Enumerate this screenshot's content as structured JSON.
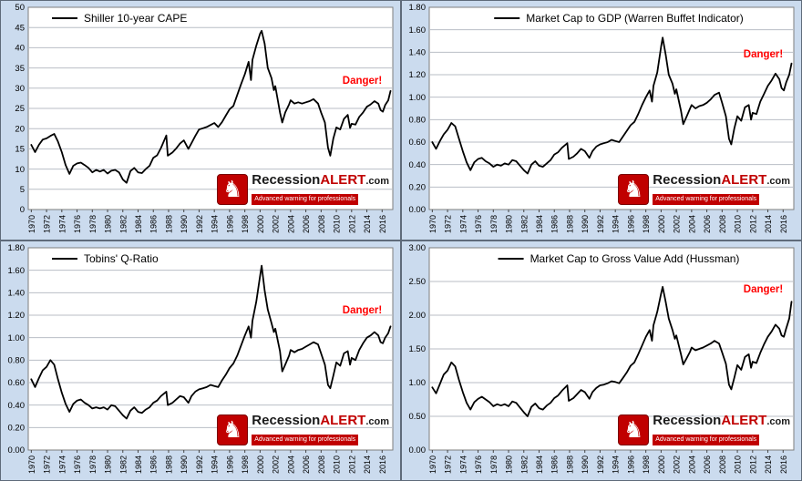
{
  "page": {
    "background": "#cbdbee"
  },
  "branding": {
    "knight_icon": "♞",
    "name_black": "Recession",
    "name_red": "ALERT",
    "name_suffix": ".com",
    "tagline": "Advanced warning for professionals",
    "accent_color": "#c00000"
  },
  "chart_data": [
    {
      "type": "line",
      "title": "Shiller 10-year CAPE",
      "series_color": "#000000",
      "danger_label": "Danger!",
      "danger_color": "#ff0000",
      "danger_pos": {
        "x": 2010.8,
        "y": 31.5
      },
      "legend_position": "top-left",
      "grid": "horizontal",
      "ylim": [
        0,
        50
      ],
      "ytick_step": 5,
      "y_decimals": 0,
      "xlim": [
        1969.6,
        2017.4
      ],
      "xticks": [
        1970,
        1972,
        1974,
        1976,
        1978,
        1980,
        1982,
        1984,
        1986,
        1988,
        1990,
        1992,
        1994,
        1996,
        1998,
        2000,
        2002,
        2004,
        2006,
        2008,
        2010,
        2012,
        2014,
        2016
      ],
      "x": [
        1970,
        1970.5,
        1971,
        1971.5,
        1972,
        1972.5,
        1973,
        1973.5,
        1974,
        1974.5,
        1975,
        1975.5,
        1976,
        1976.5,
        1977,
        1977.5,
        1978,
        1978.5,
        1979,
        1979.5,
        1980,
        1980.5,
        1981,
        1981.5,
        1982,
        1982.5,
        1983,
        1983.5,
        1984,
        1984.5,
        1985,
        1985.5,
        1986,
        1986.5,
        1987,
        1987.7,
        1987.9,
        1988.5,
        1989,
        1989.5,
        1990,
        1990.6,
        1991,
        1991.5,
        1992,
        1992.5,
        1993,
        1993.5,
        1994,
        1994.5,
        1995,
        1995.5,
        1996,
        1996.5,
        1997,
        1997.5,
        1998,
        1998.5,
        1998.8,
        1999,
        1999.5,
        2000,
        2000.2,
        2000.6,
        2001,
        2001.5,
        2001.8,
        2002,
        2002.6,
        2002.9,
        2003.3,
        2003.8,
        2004,
        2004.5,
        2005,
        2005.5,
        2006,
        2006.5,
        2007,
        2007.6,
        2008,
        2008.5,
        2008.9,
        2009.2,
        2009.6,
        2010,
        2010.5,
        2011,
        2011.5,
        2011.8,
        2012,
        2012.5,
        2013,
        2013.5,
        2014,
        2014.5,
        2015,
        2015.5,
        2015.8,
        2016.1,
        2016.4,
        2016.8,
        2017.1
      ],
      "values": [
        16,
        14.2,
        16,
        17.3,
        17.6,
        18.2,
        18.7,
        16.8,
        14.2,
        11,
        8.8,
        10.8,
        11.4,
        11.6,
        11,
        10.3,
        9.2,
        9.8,
        9.4,
        9.8,
        8.9,
        9.6,
        9.8,
        9.2,
        7.4,
        6.6,
        9.5,
        10.3,
        9.2,
        9,
        10,
        10.8,
        12.8,
        13.4,
        15.2,
        18.3,
        13.3,
        14.1,
        15.1,
        16.3,
        17.1,
        15,
        16.4,
        18.2,
        19.8,
        20.1,
        20.4,
        20.9,
        21.4,
        20.4,
        21.6,
        23.2,
        24.8,
        25.6,
        28.3,
        31,
        33.5,
        36.5,
        32,
        37,
        40.5,
        43.5,
        44.2,
        41,
        35,
        32.5,
        29.5,
        30.5,
        24,
        21.5,
        24,
        26,
        27,
        26.2,
        26.5,
        26.2,
        26.5,
        26.8,
        27.3,
        26.2,
        24,
        21.5,
        15.3,
        13.3,
        17.5,
        20.3,
        19.8,
        22.4,
        23.4,
        20.2,
        21.2,
        21,
        22.9,
        24,
        25.4,
        26,
        26.8,
        26.2,
        24.6,
        24.2,
        25.8,
        27,
        29.3
      ]
    },
    {
      "type": "line",
      "title": "Market Cap to GDP (Warren Buffet Indicator)",
      "series_color": "#000000",
      "danger_label": "Danger!",
      "danger_color": "#ff0000",
      "danger_pos": {
        "x": 2010.8,
        "y": 1.37
      },
      "legend_position": "top-center",
      "grid": "horizontal",
      "ylim": [
        0,
        1.8
      ],
      "ytick_step": 0.2,
      "y_decimals": 2,
      "xlim": [
        1969.6,
        2017.4
      ],
      "xticks": [
        1970,
        1972,
        1974,
        1976,
        1978,
        1980,
        1982,
        1984,
        1986,
        1988,
        1990,
        1992,
        1994,
        1996,
        1998,
        2000,
        2002,
        2004,
        2006,
        2008,
        2010,
        2012,
        2014,
        2016
      ],
      "x": [
        1970,
        1970.5,
        1971,
        1971.5,
        1972,
        1972.5,
        1973,
        1973.5,
        1974,
        1974.5,
        1975,
        1975.5,
        1976,
        1976.5,
        1977,
        1977.5,
        1978,
        1978.5,
        1979,
        1979.5,
        1980,
        1980.5,
        1981,
        1981.5,
        1982,
        1982.5,
        1983,
        1983.5,
        1984,
        1984.5,
        1985,
        1985.5,
        1986,
        1986.5,
        1987,
        1987.7,
        1987.9,
        1988.5,
        1989,
        1989.5,
        1990,
        1990.6,
        1991,
        1991.5,
        1992,
        1992.5,
        1993,
        1993.5,
        1994,
        1994.5,
        1995,
        1995.5,
        1996,
        1996.5,
        1997,
        1997.5,
        1998,
        1998.5,
        1998.8,
        1999,
        1999.5,
        2000,
        2000.2,
        2000.6,
        2001,
        2001.5,
        2001.8,
        2002,
        2002.6,
        2002.9,
        2003.3,
        2003.8,
        2004,
        2004.5,
        2005,
        2005.5,
        2006,
        2006.5,
        2007,
        2007.6,
        2008,
        2008.5,
        2008.9,
        2009.2,
        2009.6,
        2010,
        2010.5,
        2011,
        2011.5,
        2011.8,
        2012,
        2012.5,
        2013,
        2013.5,
        2014,
        2014.5,
        2015,
        2015.5,
        2015.8,
        2016.1,
        2016.4,
        2016.8,
        2017.1
      ],
      "values": [
        0.6,
        0.54,
        0.61,
        0.67,
        0.71,
        0.77,
        0.74,
        0.63,
        0.52,
        0.42,
        0.35,
        0.42,
        0.45,
        0.46,
        0.43,
        0.41,
        0.38,
        0.4,
        0.39,
        0.41,
        0.4,
        0.44,
        0.43,
        0.39,
        0.35,
        0.32,
        0.4,
        0.43,
        0.39,
        0.38,
        0.41,
        0.44,
        0.49,
        0.51,
        0.55,
        0.59,
        0.45,
        0.47,
        0.5,
        0.54,
        0.52,
        0.46,
        0.52,
        0.56,
        0.58,
        0.59,
        0.6,
        0.62,
        0.61,
        0.6,
        0.65,
        0.7,
        0.75,
        0.78,
        0.85,
        0.93,
        1.0,
        1.06,
        0.96,
        1.1,
        1.22,
        1.45,
        1.53,
        1.38,
        1.2,
        1.12,
        1.03,
        1.07,
        0.88,
        0.76,
        0.82,
        0.9,
        0.93,
        0.9,
        0.92,
        0.93,
        0.95,
        0.98,
        1.02,
        1.04,
        0.95,
        0.83,
        0.63,
        0.58,
        0.72,
        0.83,
        0.79,
        0.91,
        0.93,
        0.8,
        0.86,
        0.85,
        0.96,
        1.03,
        1.1,
        1.15,
        1.21,
        1.16,
        1.08,
        1.06,
        1.13,
        1.2,
        1.3
      ]
    },
    {
      "type": "line",
      "title": "Tobins' Q-Ratio",
      "series_color": "#000000",
      "danger_label": "Danger!",
      "danger_color": "#ff0000",
      "danger_pos": {
        "x": 2010.8,
        "y": 1.23
      },
      "legend_position": "top-left",
      "grid": "horizontal",
      "ylim": [
        0,
        1.8
      ],
      "ytick_step": 0.2,
      "y_decimals": 2,
      "xlim": [
        1969.6,
        2017.4
      ],
      "xticks": [
        1970,
        1972,
        1974,
        1976,
        1978,
        1980,
        1982,
        1984,
        1986,
        1988,
        1990,
        1992,
        1994,
        1996,
        1998,
        2000,
        2002,
        2004,
        2006,
        2008,
        2010,
        2012,
        2014,
        2016
      ],
      "x": [
        1970,
        1970.5,
        1971,
        1971.5,
        1972,
        1972.5,
        1973,
        1973.5,
        1974,
        1974.5,
        1975,
        1975.5,
        1976,
        1976.5,
        1977,
        1977.5,
        1978,
        1978.5,
        1979,
        1979.5,
        1980,
        1980.5,
        1981,
        1981.5,
        1982,
        1982.5,
        1983,
        1983.5,
        1984,
        1984.5,
        1985,
        1985.5,
        1986,
        1986.5,
        1987,
        1987.7,
        1987.9,
        1988.5,
        1989,
        1989.5,
        1990,
        1990.6,
        1991,
        1991.5,
        1992,
        1992.5,
        1993,
        1993.5,
        1994,
        1994.5,
        1995,
        1995.5,
        1996,
        1996.5,
        1997,
        1997.5,
        1998,
        1998.5,
        1998.8,
        1999,
        1999.5,
        2000,
        2000.2,
        2000.6,
        2001,
        2001.5,
        2001.8,
        2002,
        2002.6,
        2002.9,
        2003.3,
        2003.8,
        2004,
        2004.5,
        2005,
        2005.5,
        2006,
        2006.5,
        2007,
        2007.6,
        2008,
        2008.5,
        2008.9,
        2009.2,
        2009.6,
        2010,
        2010.5,
        2011,
        2011.5,
        2011.8,
        2012,
        2012.5,
        2013,
        2013.5,
        2014,
        2014.5,
        2015,
        2015.5,
        2015.8,
        2016.1,
        2016.4,
        2016.8,
        2017.1
      ],
      "values": [
        0.63,
        0.56,
        0.64,
        0.71,
        0.74,
        0.8,
        0.76,
        0.63,
        0.51,
        0.41,
        0.34,
        0.41,
        0.44,
        0.45,
        0.42,
        0.4,
        0.37,
        0.38,
        0.37,
        0.38,
        0.36,
        0.4,
        0.39,
        0.35,
        0.31,
        0.28,
        0.35,
        0.38,
        0.34,
        0.33,
        0.36,
        0.38,
        0.42,
        0.44,
        0.48,
        0.52,
        0.4,
        0.42,
        0.45,
        0.48,
        0.47,
        0.42,
        0.48,
        0.52,
        0.54,
        0.55,
        0.56,
        0.58,
        0.57,
        0.56,
        0.62,
        0.67,
        0.73,
        0.77,
        0.84,
        0.93,
        1.02,
        1.1,
        1.0,
        1.15,
        1.32,
        1.55,
        1.64,
        1.42,
        1.25,
        1.13,
        1.05,
        1.08,
        0.88,
        0.7,
        0.76,
        0.84,
        0.89,
        0.87,
        0.89,
        0.9,
        0.92,
        0.94,
        0.96,
        0.94,
        0.86,
        0.76,
        0.58,
        0.55,
        0.66,
        0.78,
        0.75,
        0.86,
        0.88,
        0.76,
        0.82,
        0.8,
        0.89,
        0.95,
        1.0,
        1.02,
        1.05,
        1.02,
        0.96,
        0.95,
        1.0,
        1.04,
        1.1
      ]
    },
    {
      "type": "line",
      "title": "Market Cap to Gross Value Add (Hussman)",
      "series_color": "#000000",
      "danger_label": "Danger!",
      "danger_color": "#ff0000",
      "danger_pos": {
        "x": 2010.8,
        "y": 2.36
      },
      "legend_position": "top-center",
      "grid": "horizontal",
      "ylim": [
        0,
        3
      ],
      "ytick_step": 0.5,
      "y_decimals": 2,
      "xlim": [
        1969.6,
        2017.4
      ],
      "xticks": [
        1970,
        1972,
        1974,
        1976,
        1978,
        1980,
        1982,
        1984,
        1986,
        1988,
        1990,
        1992,
        1994,
        1996,
        1998,
        2000,
        2002,
        2004,
        2006,
        2008,
        2010,
        2012,
        2014,
        2016
      ],
      "x": [
        1970,
        1970.5,
        1971,
        1971.5,
        1972,
        1972.5,
        1973,
        1973.5,
        1974,
        1974.5,
        1975,
        1975.5,
        1976,
        1976.5,
        1977,
        1977.5,
        1978,
        1978.5,
        1979,
        1979.5,
        1980,
        1980.5,
        1981,
        1981.5,
        1982,
        1982.5,
        1983,
        1983.5,
        1984,
        1984.5,
        1985,
        1985.5,
        1986,
        1986.5,
        1987,
        1987.7,
        1987.9,
        1988.5,
        1989,
        1989.5,
        1990,
        1990.6,
        1991,
        1991.5,
        1992,
        1992.5,
        1993,
        1993.5,
        1994,
        1994.5,
        1995,
        1995.5,
        1996,
        1996.5,
        1997,
        1997.5,
        1998,
        1998.5,
        1998.8,
        1999,
        1999.5,
        2000,
        2000.2,
        2000.6,
        2001,
        2001.5,
        2001.8,
        2002,
        2002.6,
        2002.9,
        2003.3,
        2003.8,
        2004,
        2004.5,
        2005,
        2005.5,
        2006,
        2006.5,
        2007,
        2007.6,
        2008,
        2008.5,
        2008.9,
        2009.2,
        2009.6,
        2010,
        2010.5,
        2011,
        2011.5,
        2011.8,
        2012,
        2012.5,
        2013,
        2013.5,
        2014,
        2014.5,
        2015,
        2015.5,
        2015.8,
        2016.1,
        2016.4,
        2016.8,
        2017.1
      ],
      "values": [
        0.93,
        0.84,
        0.98,
        1.12,
        1.18,
        1.3,
        1.24,
        1.04,
        0.86,
        0.7,
        0.6,
        0.71,
        0.76,
        0.79,
        0.75,
        0.71,
        0.65,
        0.68,
        0.66,
        0.68,
        0.65,
        0.72,
        0.7,
        0.63,
        0.56,
        0.5,
        0.64,
        0.69,
        0.62,
        0.6,
        0.66,
        0.7,
        0.77,
        0.81,
        0.88,
        0.96,
        0.73,
        0.77,
        0.83,
        0.89,
        0.86,
        0.76,
        0.86,
        0.92,
        0.96,
        0.97,
        0.99,
        1.02,
        1.01,
        0.99,
        1.07,
        1.15,
        1.25,
        1.3,
        1.42,
        1.55,
        1.68,
        1.78,
        1.62,
        1.85,
        2.05,
        2.32,
        2.42,
        2.2,
        1.95,
        1.78,
        1.65,
        1.7,
        1.42,
        1.27,
        1.35,
        1.46,
        1.52,
        1.48,
        1.5,
        1.52,
        1.55,
        1.58,
        1.62,
        1.58,
        1.45,
        1.28,
        0.97,
        0.9,
        1.07,
        1.26,
        1.19,
        1.38,
        1.42,
        1.22,
        1.31,
        1.29,
        1.44,
        1.57,
        1.68,
        1.76,
        1.86,
        1.8,
        1.7,
        1.68,
        1.8,
        1.95,
        2.2
      ]
    }
  ]
}
